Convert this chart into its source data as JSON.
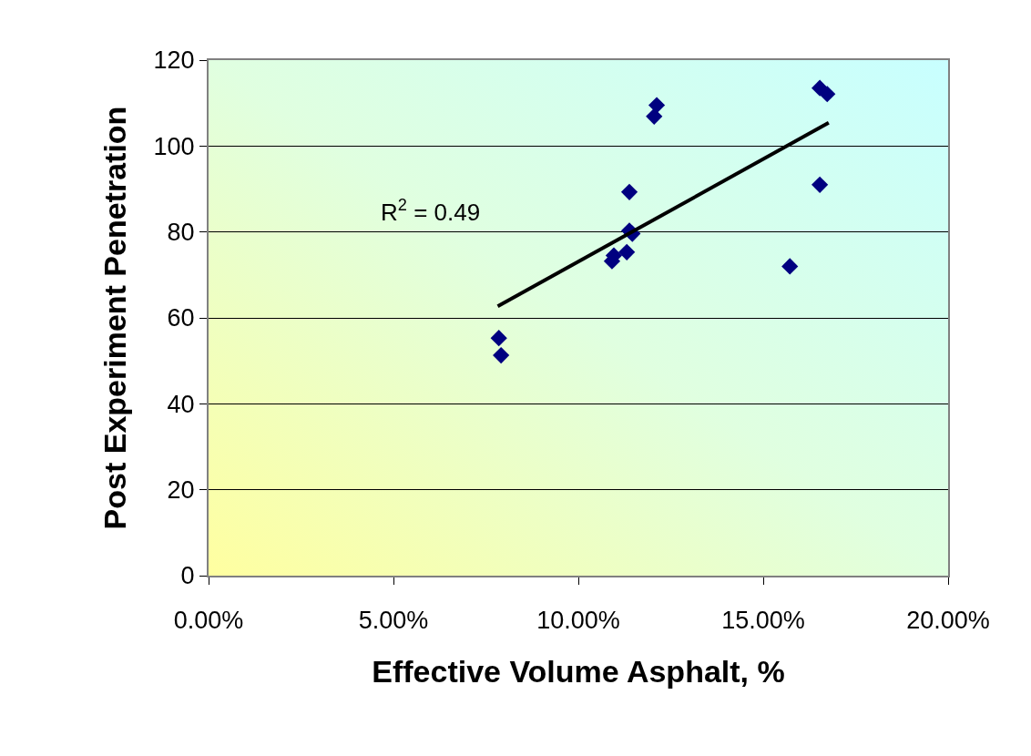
{
  "chart_data": {
    "type": "scatter",
    "xlabel": "Effective Volume Asphalt, %",
    "ylabel": "Post Experiment Penetration",
    "annotations": [
      "R$^{2}$ = 0.49"
    ],
    "xlim": [
      0,
      20
    ],
    "ylim": [
      0,
      120
    ],
    "xticks": [
      {
        "value": 0,
        "label": "0.00%"
      },
      {
        "value": 5,
        "label": "5.00%"
      },
      {
        "value": 10,
        "label": "10.00%"
      },
      {
        "value": 15,
        "label": "15.00%"
      },
      {
        "value": 20,
        "label": "20.00%"
      }
    ],
    "yticks": [
      0,
      20,
      40,
      60,
      80,
      100,
      120
    ],
    "grid": "y",
    "series": [
      {
        "type": "scatter",
        "color": "#000080",
        "marker": "diamond",
        "x": [
          7.85,
          7.91,
          12.12,
          12.05,
          11.38,
          11.38,
          11.46,
          11.31,
          10.96,
          10.91,
          15.72,
          16.53,
          16.53,
          16.73
        ],
        "values": [
          55.3,
          51.3,
          109.5,
          106.9,
          89.3,
          80.3,
          79.6,
          75.3,
          74.5,
          73.2,
          72.0,
          91.0,
          113.5,
          112.1
        ]
      },
      {
        "type": "line",
        "color": "#000000",
        "x": [
          7.82,
          16.77
        ],
        "values": [
          62.7,
          105.4
        ]
      }
    ]
  }
}
